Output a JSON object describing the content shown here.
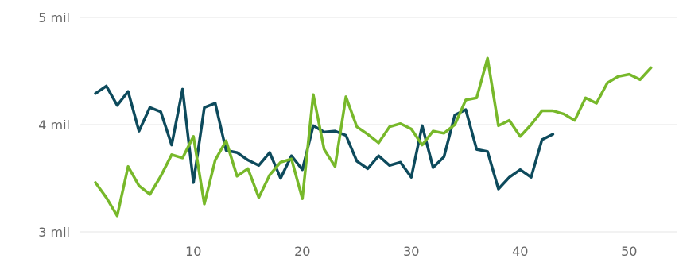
{
  "chart_data": {
    "type": "line",
    "title": "",
    "xlabel": "",
    "ylabel": "",
    "xlim": [
      1,
      52
    ],
    "ylim": [
      3000,
      5000
    ],
    "grid": true,
    "legend": "none",
    "x_ticks": [
      {
        "value": 10,
        "label": "10"
      },
      {
        "value": 20,
        "label": "20"
      },
      {
        "value": 30,
        "label": "30"
      },
      {
        "value": 40,
        "label": "40"
      },
      {
        "value": 50,
        "label": "50"
      }
    ],
    "y_ticks": [
      {
        "value": 3000,
        "label": "3 mil"
      },
      {
        "value": 4000,
        "label": "4 mil"
      },
      {
        "value": 5000,
        "label": "5 mil"
      }
    ],
    "series": [
      {
        "color": "#0d4a5c",
        "x": [
          1,
          2,
          3,
          4,
          5,
          6,
          7,
          8,
          9,
          10,
          11,
          12,
          13,
          14,
          15,
          16,
          17,
          18,
          19,
          20,
          21,
          22,
          23,
          24,
          25,
          26,
          27,
          28,
          29,
          30,
          31,
          32,
          33,
          34,
          35,
          36,
          37,
          38,
          39,
          40,
          41,
          42,
          43
        ],
        "y": [
          4290,
          4360,
          4180,
          4310,
          3940,
          4160,
          4120,
          3810,
          4330,
          3460,
          4160,
          4200,
          3760,
          3740,
          3670,
          3620,
          3740,
          3500,
          3710,
          3580,
          3990,
          3930,
          3940,
          3900,
          3660,
          3590,
          3710,
          3620,
          3650,
          3510,
          3990,
          3600,
          3700,
          4090,
          4140,
          3770,
          3750,
          3400,
          3510,
          3580,
          3510,
          3860,
          3910
        ]
      },
      {
        "color": "#77b82a",
        "x": [
          1,
          2,
          3,
          4,
          5,
          6,
          7,
          8,
          9,
          10,
          11,
          12,
          13,
          14,
          15,
          16,
          17,
          18,
          19,
          20,
          21,
          22,
          23,
          24,
          25,
          26,
          27,
          28,
          29,
          30,
          31,
          32,
          33,
          34,
          35,
          36,
          37,
          38,
          39,
          40,
          41,
          42,
          43,
          44,
          45,
          46,
          47,
          48,
          49,
          50,
          51,
          52
        ],
        "y": [
          3460,
          3320,
          3150,
          3610,
          3430,
          3350,
          3520,
          3720,
          3690,
          3890,
          3260,
          3670,
          3850,
          3520,
          3590,
          3320,
          3530,
          3650,
          3680,
          3310,
          4280,
          3770,
          3610,
          4260,
          3980,
          3910,
          3830,
          3980,
          4010,
          3960,
          3810,
          3940,
          3920,
          4000,
          4230,
          4250,
          4620,
          3990,
          4040,
          3890,
          4000,
          4130,
          4130,
          4100,
          4040,
          4250,
          4200,
          4390,
          4450,
          4470,
          4420,
          4530
        ]
      }
    ]
  }
}
